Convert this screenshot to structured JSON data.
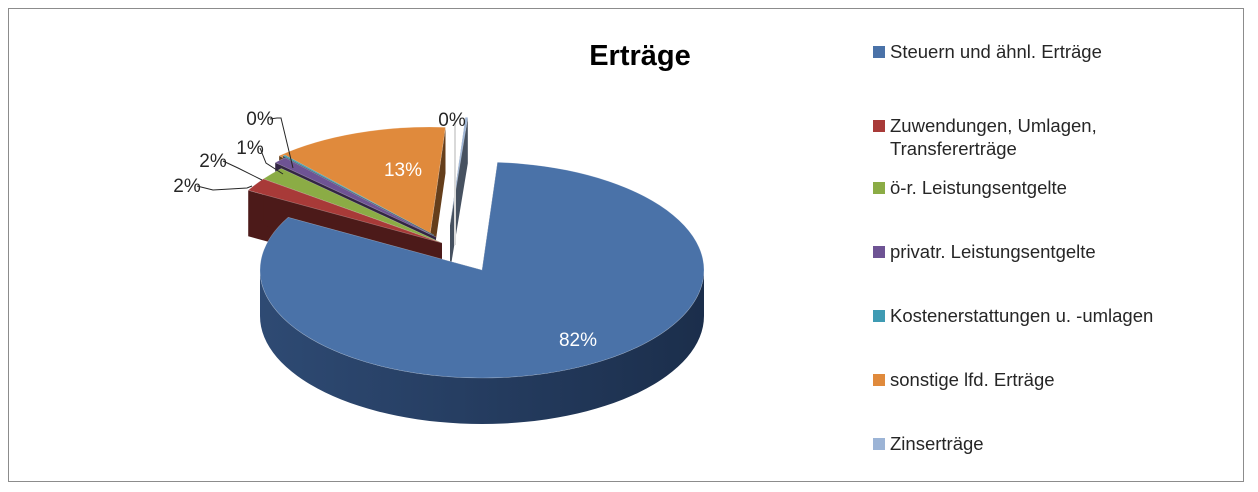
{
  "chart_data": {
    "type": "pie",
    "title": "Erträge",
    "categories": [
      "Steuern und ähnl. Erträge",
      "Zuwendungen, Umlagen,\nTransfererträge",
      "ö-r. Leistungsentgelte",
      "privatr. Leistungsentgelte",
      "Kostenerstattungen u. -umlagen",
      "sonstige lfd. Erträge",
      "Zinserträge"
    ],
    "values": [
      82,
      2,
      2,
      1,
      0,
      13,
      0
    ],
    "data_labels": [
      "82%",
      "2%",
      "2%",
      "1%",
      "0%",
      "13%",
      "0%"
    ],
    "colors": [
      "#4a72a8",
      "#a83a38",
      "#8bac45",
      "#6e5394",
      "#3f9bb3",
      "#e08a3c",
      "#9cb4d6"
    ],
    "legend_position": "right",
    "style": "3d-exploded"
  }
}
